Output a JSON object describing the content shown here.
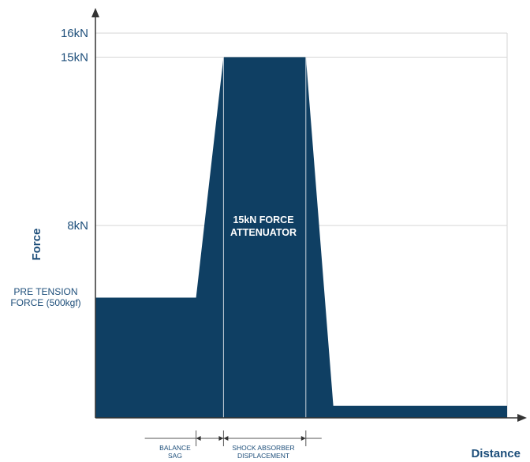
{
  "chart_data": {
    "type": "area",
    "title": "",
    "xlabel": "Distance",
    "ylabel": "Force",
    "y_ticks": [
      "16kN",
      "15kN",
      "8kN"
    ],
    "ylim": [
      0,
      16
    ],
    "x": [
      0,
      4.4,
      5.6,
      9.2,
      10.4,
      18
    ],
    "values": [
      5,
      5,
      15,
      15,
      0.5,
      0.5
    ],
    "grid": true,
    "annotations": {
      "pre_tension": [
        "PRE TENSION",
        "FORCE (500kgf)"
      ],
      "attenuator": [
        "15kN FORCE",
        "ATTENUATOR"
      ],
      "balance_sag": [
        "BALANCE",
        "SAG"
      ],
      "shock_absorber": [
        "SHOCK ABSORBER",
        "DISPLACEMENT"
      ]
    },
    "colors": {
      "fill": "#0f3f63",
      "axis": "#333333",
      "grid": "#d6d6d6",
      "text": "#1d4e7a"
    }
  }
}
